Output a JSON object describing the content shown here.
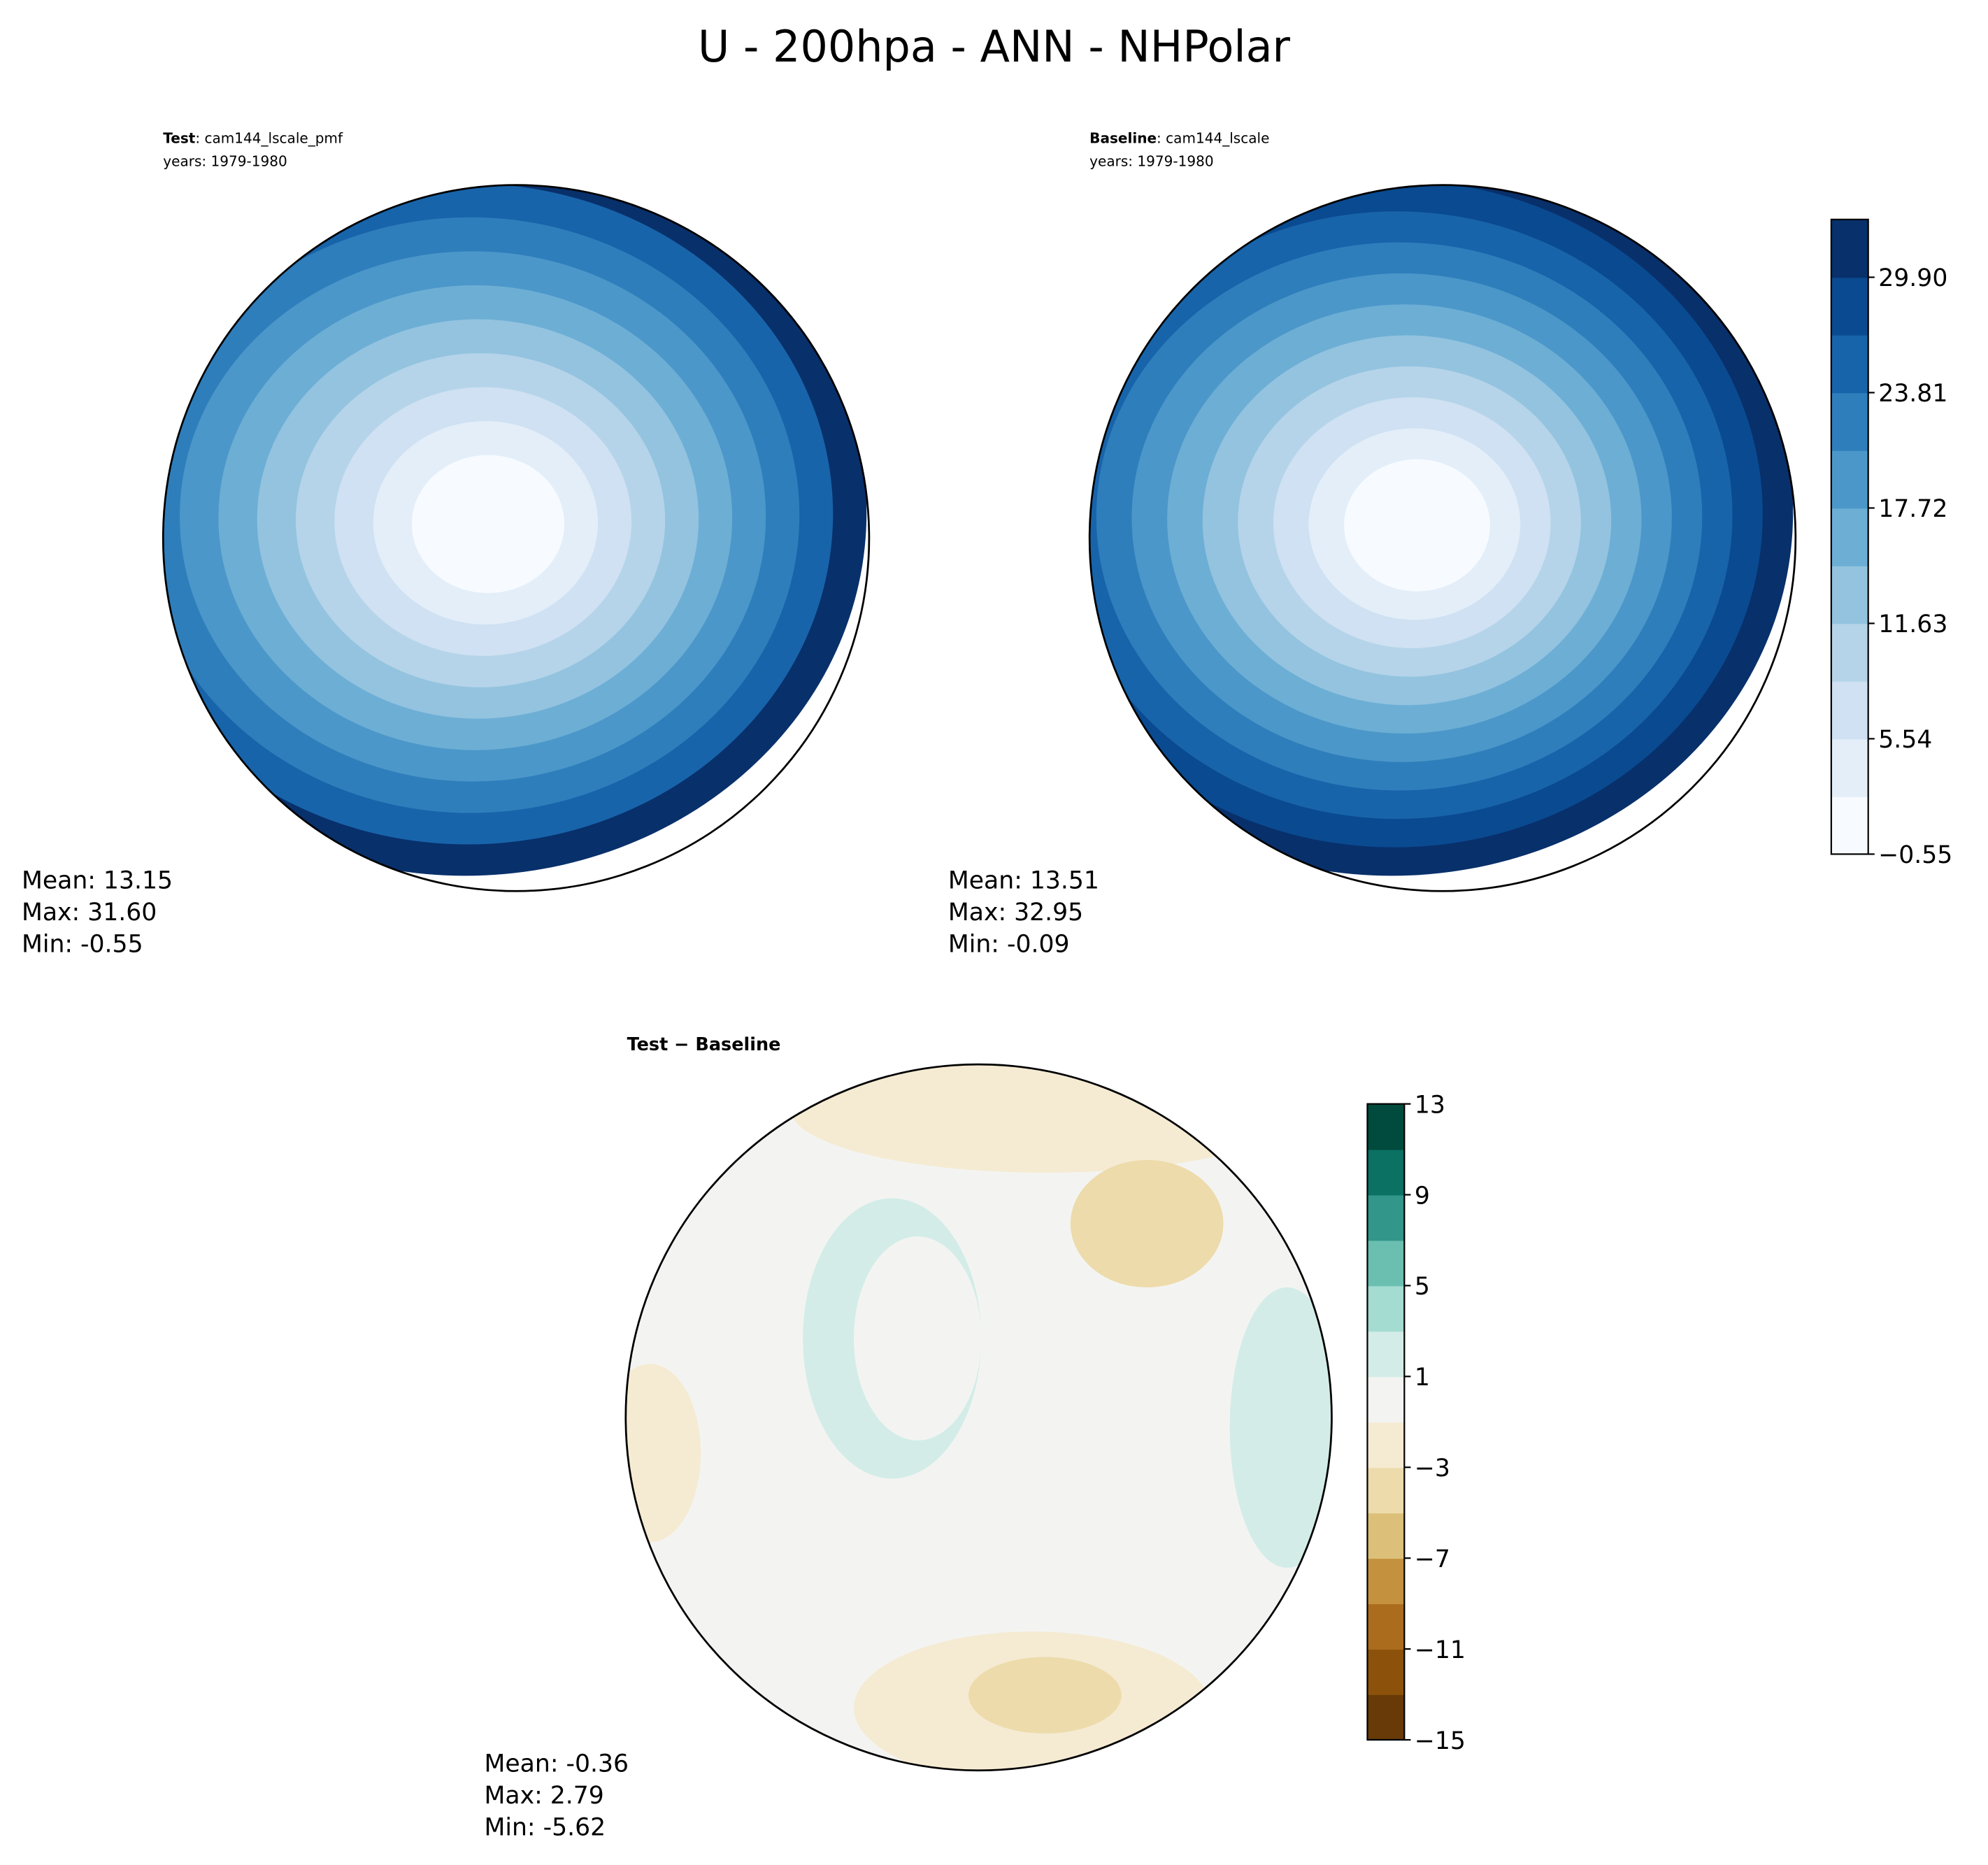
{
  "title": "U - 200hpa - ANN - NHPolar",
  "panels": [
    {
      "label_bold": "Test",
      "label_rest": ": cam144_lscale_pmf",
      "years": "years: 1979-1980",
      "stats": [
        "Mean: 13.15",
        "Max: 31.60",
        "Min: -0.55"
      ]
    },
    {
      "label_bold": "Baseline",
      "label_rest": ": cam144_lscale",
      "years": "years: 1979-1980",
      "stats": [
        "Mean: 13.51",
        "Max: 32.95",
        "Min: -0.09"
      ]
    },
    {
      "label_bold": "Test − Baseline",
      "stats": [
        "Mean: -0.36",
        "Max:  2.79",
        "Min: -5.62"
      ]
    }
  ],
  "colorbars": [
    {
      "lim": [
        -0.55,
        32.95
      ],
      "ticks": [
        {
          "value": -0.55,
          "label": "−0.55"
        },
        5.54,
        11.63,
        17.72,
        23.81,
        {
          "value": 29.9,
          "label": "29.90"
        }
      ],
      "colors": [
        "#f7fbff",
        "#e3eef9",
        "#cfe1f2",
        "#b5d4e9",
        "#93c3df",
        "#6daed5",
        "#4b97c9",
        "#2f7ebc",
        "#1864aa",
        "#0a4a90",
        "#08306b"
      ]
    },
    {
      "lim": [
        -15,
        13
      ],
      "ticks": [
        {
          "value": -15,
          "label": "−15"
        },
        {
          "value": -11,
          "label": "−11"
        },
        {
          "value": -7,
          "label": "−7"
        },
        {
          "value": -3,
          "label": "−3"
        },
        1,
        5,
        9,
        13
      ],
      "colors": [
        "#673a08",
        "#8c520b",
        "#ac6c1e",
        "#c4913f",
        "#dcc079",
        "#eddbab",
        "#f5ebd3",
        "#f3f4f2",
        "#d3ece8",
        "#a5dcd1",
        "#6bbfb0",
        "#32968a",
        "#0a7163",
        "#004b3d"
      ]
    }
  ]
}
